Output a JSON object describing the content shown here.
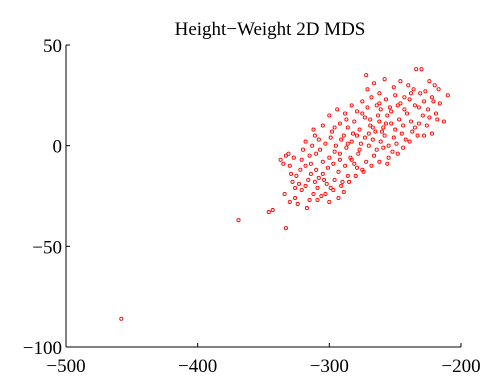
{
  "chart_data": {
    "type": "scatter",
    "title": "Height−Weight 2D MDS",
    "xlabel": "",
    "ylabel": "",
    "xlim": [
      -500,
      -200
    ],
    "ylim": [
      -100,
      50
    ],
    "xticks": [
      -500,
      -400,
      -300,
      -200
    ],
    "yticks": [
      -100,
      -50,
      0,
      50
    ],
    "xtick_labels": [
      "−500",
      "−400",
      "−300",
      "−200"
    ],
    "ytick_labels": [
      "−100",
      "−50",
      "0",
      "50"
    ],
    "grid": false,
    "marker_color": "#ff0000",
    "marker": "open-circle",
    "series": [
      {
        "points": [
          [
            -458,
            -86
          ],
          [
            -369,
            -37
          ],
          [
            -343,
            -32
          ],
          [
            -346,
            -33
          ],
          [
            -333,
            -41
          ],
          [
            -334,
            -24
          ],
          [
            -330,
            -28
          ],
          [
            -326,
            -26
          ],
          [
            -321,
            -22
          ],
          [
            -318,
            -20
          ],
          [
            -324,
            -29
          ],
          [
            -315,
            -27
          ],
          [
            -312,
            -24
          ],
          [
            -309,
            -27
          ],
          [
            -306,
            -25
          ],
          [
            -328,
            -18
          ],
          [
            -325,
            -15
          ],
          [
            -322,
            -12
          ],
          [
            -330,
            -10
          ],
          [
            -318,
            -10
          ],
          [
            -314,
            -14
          ],
          [
            -311,
            -18
          ],
          [
            -308,
            -16
          ],
          [
            -305,
            -14
          ],
          [
            -302,
            -19
          ],
          [
            -299,
            -21
          ],
          [
            -296,
            -17
          ],
          [
            -293,
            -13
          ],
          [
            -290,
            -18
          ],
          [
            -286,
            -15
          ],
          [
            -333,
            -5
          ],
          [
            -327,
            -6
          ],
          [
            -321,
            -7
          ],
          [
            -315,
            -5
          ],
          [
            -310,
            -4
          ],
          [
            -305,
            -8
          ],
          [
            -300,
            -6
          ],
          [
            -296,
            -3
          ],
          [
            -292,
            -7
          ],
          [
            -288,
            -10
          ],
          [
            -284,
            -6
          ],
          [
            -281,
            -9
          ],
          [
            -278,
            -4
          ],
          [
            -275,
            -12
          ],
          [
            -272,
            -8
          ],
          [
            -318,
            2
          ],
          [
            -313,
            0
          ],
          [
            -308,
            3
          ],
          [
            -303,
            1
          ],
          [
            -299,
            4
          ],
          [
            -295,
            0
          ],
          [
            -291,
            3
          ],
          [
            -287,
            -1
          ],
          [
            -283,
            2
          ],
          [
            -279,
            5
          ],
          [
            -276,
            1
          ],
          [
            -273,
            4
          ],
          [
            -270,
            0
          ],
          [
            -267,
            3
          ],
          [
            -264,
            -2
          ],
          [
            -261,
            2
          ],
          [
            -258,
            5
          ],
          [
            -255,
            0
          ],
          [
            -252,
            -3
          ],
          [
            -249,
            1
          ],
          [
            -312,
            8
          ],
          [
            -305,
            10
          ],
          [
            -298,
            7
          ],
          [
            -292,
            11
          ],
          [
            -286,
            9
          ],
          [
            -281,
            12
          ],
          [
            -277,
            8
          ],
          [
            -273,
            14
          ],
          [
            -269,
            10
          ],
          [
            -265,
            7
          ],
          [
            -262,
            12
          ],
          [
            -259,
            9
          ],
          [
            -256,
            15
          ],
          [
            -253,
            11
          ],
          [
            -250,
            8
          ],
          [
            -247,
            13
          ],
          [
            -244,
            10
          ],
          [
            -241,
            16
          ],
          [
            -238,
            12
          ],
          [
            -235,
            9
          ],
          [
            -300,
            15
          ],
          [
            -294,
            18
          ],
          [
            -288,
            16
          ],
          [
            -283,
            20
          ],
          [
            -279,
            17
          ],
          [
            -275,
            22
          ],
          [
            -271,
            19
          ],
          [
            -268,
            24
          ],
          [
            -264,
            20
          ],
          [
            -261,
            18
          ],
          [
            -257,
            23
          ],
          [
            -254,
            19
          ],
          [
            -250,
            25
          ],
          [
            -246,
            21
          ],
          [
            -243,
            18
          ],
          [
            -239,
            23
          ],
          [
            -235,
            20
          ],
          [
            -231,
            26
          ],
          [
            -228,
            22
          ],
          [
            -225,
            18
          ],
          [
            -222,
            24
          ],
          [
            -219,
            16
          ],
          [
            -216,
            21
          ],
          [
            -213,
            12
          ],
          [
            -210,
            25
          ],
          [
            -271,
            28
          ],
          [
            -266,
            31
          ],
          [
            -262,
            26
          ],
          [
            -258,
            33
          ],
          [
            -272,
            35
          ],
          [
            -251,
            29
          ],
          [
            -246,
            32
          ],
          [
            -240,
            30
          ],
          [
            -234,
            38
          ],
          [
            -230,
            38
          ],
          [
            -224,
            32
          ],
          [
            -220,
            30
          ],
          [
            -236,
            28
          ],
          [
            -229,
            15
          ],
          [
            -222,
            6
          ],
          [
            -218,
            13
          ],
          [
            -226,
            10
          ],
          [
            -233,
            5
          ],
          [
            -239,
            2
          ],
          [
            -244,
            -1
          ],
          [
            -248,
            -4
          ],
          [
            -255,
            -6
          ],
          [
            -262,
            -8
          ],
          [
            -268,
            -10
          ],
          [
            -274,
            -13
          ],
          [
            -280,
            -15
          ],
          [
            -285,
            -18
          ],
          [
            -291,
            -20
          ],
          [
            -297,
            -22
          ],
          [
            -303,
            -24
          ],
          [
            -309,
            -21
          ],
          [
            -316,
            -17
          ],
          [
            -323,
            -19
          ],
          [
            -329,
            -14
          ],
          [
            -335,
            -9
          ],
          [
            -296,
            9
          ],
          [
            -289,
            5
          ],
          [
            -282,
            6
          ],
          [
            -277,
            -2
          ],
          [
            -270,
            6
          ],
          [
            -266,
            -5
          ],
          [
            -260,
            7
          ],
          [
            -256,
            -9
          ],
          [
            -251,
            4
          ],
          [
            -245,
            6
          ],
          [
            -242,
            3
          ],
          [
            -237,
            7
          ],
          [
            -232,
            11
          ],
          [
            -228,
            5
          ],
          [
            -224,
            14
          ],
          [
            -283,
            -7
          ],
          [
            -279,
            -11
          ],
          [
            -287,
            13
          ],
          [
            -263,
            15
          ],
          [
            -259,
            -1
          ],
          [
            -267,
            9
          ],
          [
            -301,
            -11
          ],
          [
            -307,
            -2
          ],
          [
            -311,
            5
          ],
          [
            -297,
            -9
          ],
          [
            -275,
            16
          ],
          [
            -269,
            13
          ],
          [
            -286,
            1
          ],
          [
            -292,
            -4
          ],
          [
            -304,
            -17
          ],
          [
            -314,
            -9
          ],
          [
            -320,
            -2
          ],
          [
            -326,
            -21
          ],
          [
            -331,
            -4
          ],
          [
            -337,
            -7
          ],
          [
            -289,
            -23
          ],
          [
            -293,
            -26
          ],
          [
            -300,
            -28
          ],
          [
            -310,
            -12
          ],
          [
            -317,
            -31
          ],
          [
            -253,
            17
          ],
          [
            -248,
            20
          ],
          [
            -243,
            24
          ],
          [
            -238,
            26
          ],
          [
            -232,
            19
          ],
          [
            -227,
            27
          ],
          [
            -221,
            22
          ],
          [
            -217,
            28
          ],
          [
            -257,
            11
          ],
          [
            -262,
            21
          ]
        ]
      }
    ]
  }
}
